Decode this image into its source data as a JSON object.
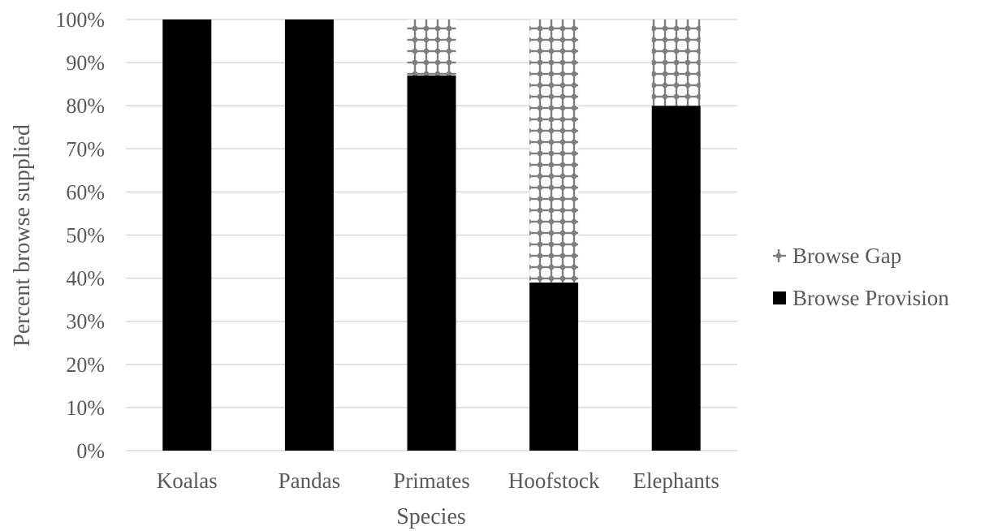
{
  "chart_data": {
    "type": "bar",
    "stacked": true,
    "percent_stacked": true,
    "categories": [
      "Koalas",
      "Pandas",
      "Primates",
      "Hoofstock",
      "Elephants"
    ],
    "series": [
      {
        "name": "Browse Provision",
        "values": [
          100,
          100,
          87,
          39,
          80
        ],
        "color": "#000000",
        "pattern": "solid"
      },
      {
        "name": "Browse Gap",
        "values": [
          0,
          0,
          13,
          61,
          20
        ],
        "color": "#7f7f7f",
        "pattern": "dotted-cross"
      }
    ],
    "title": "",
    "xlabel": "Species",
    "ylabel": "Percent browse supplied",
    "ylim": [
      0,
      100
    ],
    "yticks": [
      "0%",
      "10%",
      "20%",
      "30%",
      "40%",
      "50%",
      "60%",
      "70%",
      "80%",
      "90%",
      "100%"
    ],
    "grid": "horizontal",
    "legend_position": "right",
    "legend_order": [
      "Browse Gap",
      "Browse Provision"
    ]
  }
}
